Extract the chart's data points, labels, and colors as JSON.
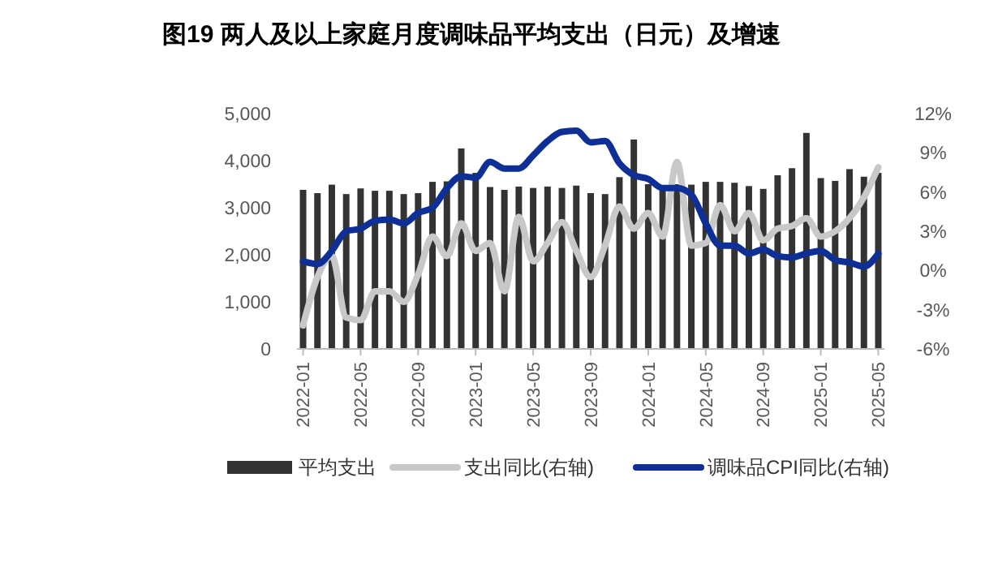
{
  "chart_data": {
    "type": "bar",
    "title": "图19 两人及以上家庭月度调味品平均支出（日元）及增速",
    "categories": [
      "2022-01",
      null,
      null,
      null,
      "2022-05",
      null,
      null,
      null,
      "2022-09",
      null,
      null,
      null,
      "2023-01",
      null,
      null,
      null,
      "2023-05",
      null,
      null,
      null,
      "2023-09",
      null,
      null,
      null,
      "2024-01",
      null,
      null,
      null,
      "2024-05",
      null,
      null,
      null,
      "2024-09",
      null,
      null,
      null,
      "2025-01",
      null,
      null,
      null,
      "2025-05"
    ],
    "series": [
      {
        "name": "平均支出",
        "color": "#333333",
        "values": [
          3380,
          3310,
          3490,
          3290,
          3410,
          3360,
          3360,
          3290,
          3310,
          3550,
          3560,
          4260,
          3740,
          3440,
          3380,
          3450,
          3420,
          3450,
          3420,
          3470,
          3310,
          3290,
          3650,
          4450,
          3500,
          3400,
          3500,
          3490,
          3550,
          3550,
          3530,
          3460,
          3400,
          3690,
          3840,
          4590,
          3630,
          3570,
          3820,
          3660,
          3740
        ]
      },
      {
        "name": "支出同比(右轴)",
        "type": "line",
        "axis": "y2",
        "color": "#c8c8c8",
        "values": [
          -4.2,
          -0.5,
          1.1,
          -3.6,
          -3.8,
          -1.6,
          -1.6,
          -2.4,
          -0.3,
          2.6,
          1.1,
          3.6,
          1.5,
          2.1,
          -1.6,
          4.1,
          0.7,
          2.1,
          3.7,
          1.5,
          -0.5,
          1.9,
          4.9,
          3.2,
          4.4,
          2.6,
          8.3,
          1.9,
          2.1,
          5.0,
          3.0,
          4.4,
          2.3,
          3.2,
          3.4,
          4.0,
          2.6,
          3.0,
          4.0,
          5.6,
          7.9
        ]
      },
      {
        "name": "调味品CPI同比(右轴)",
        "type": "line",
        "axis": "y2",
        "color": "#0d2f96",
        "values": [
          0.7,
          0.5,
          1.5,
          3.0,
          3.2,
          3.8,
          3.9,
          3.6,
          4.4,
          4.8,
          6.3,
          7.2,
          7.1,
          8.3,
          7.8,
          7.8,
          8.8,
          9.9,
          10.6,
          10.7,
          9.8,
          9.9,
          8.2,
          7.3,
          7.0,
          6.3,
          6.3,
          5.8,
          3.6,
          1.9,
          1.9,
          1.3,
          1.6,
          1.1,
          1.0,
          1.3,
          1.5,
          0.8,
          0.6,
          0.3,
          1.3
        ]
      }
    ],
    "ylim": [
      0,
      5000
    ],
    "yticks": [
      {
        "value": 0,
        "label": "0"
      },
      {
        "value": 1000,
        "label": "1,000"
      },
      {
        "value": 2000,
        "label": "2,000"
      },
      {
        "value": 3000,
        "label": "3,000"
      },
      {
        "value": 4000,
        "label": "4,000"
      },
      {
        "value": 5000,
        "label": "5,000"
      }
    ],
    "y2lim": [
      -6,
      12
    ],
    "y2ticks": [
      {
        "value": -6,
        "label": "-6%"
      },
      {
        "value": -3,
        "label": "-3%"
      },
      {
        "value": 0,
        "label": "0%"
      },
      {
        "value": 3,
        "label": "3%"
      },
      {
        "value": 6,
        "label": "6%"
      },
      {
        "value": 9,
        "label": "9%"
      },
      {
        "value": 12,
        "label": "12%"
      }
    ],
    "legend": "bottom",
    "grid": false
  }
}
